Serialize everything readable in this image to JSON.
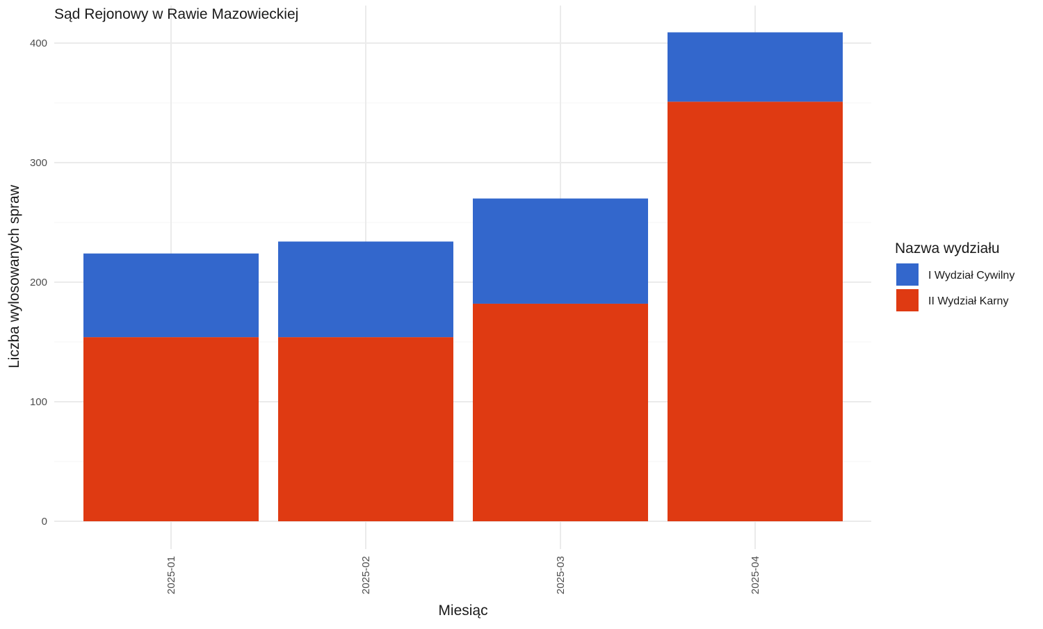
{
  "chart_data": {
    "type": "bar",
    "stacked": true,
    "title": "Sąd Rejonowy w Rawie Mazowieckiej",
    "xlabel": "Miesiąc",
    "ylabel": "Liczba wylosowanych spraw",
    "categories": [
      "2025-01",
      "2025-02",
      "2025-03",
      "2025-04"
    ],
    "series": [
      {
        "name": "II Wydział Karny",
        "color": "#DF3A12",
        "values": [
          154,
          154,
          182,
          351
        ]
      },
      {
        "name": "I Wydział Cywilny",
        "color": "#3367CC",
        "values": [
          70,
          80,
          88,
          58
        ]
      }
    ],
    "ylim": [
      0,
      410
    ],
    "yticks": [
      0,
      100,
      200,
      300,
      400
    ],
    "ytick_labels": [
      "0",
      "100",
      "200",
      "300",
      "400"
    ],
    "grid": true,
    "legend": {
      "title": "Nazwa wydziału",
      "placement": "right",
      "items": [
        {
          "label": "I Wydział Cywilny",
          "color": "#3367CC"
        },
        {
          "label": "II Wydział Karny",
          "color": "#DF3A12"
        }
      ]
    }
  }
}
